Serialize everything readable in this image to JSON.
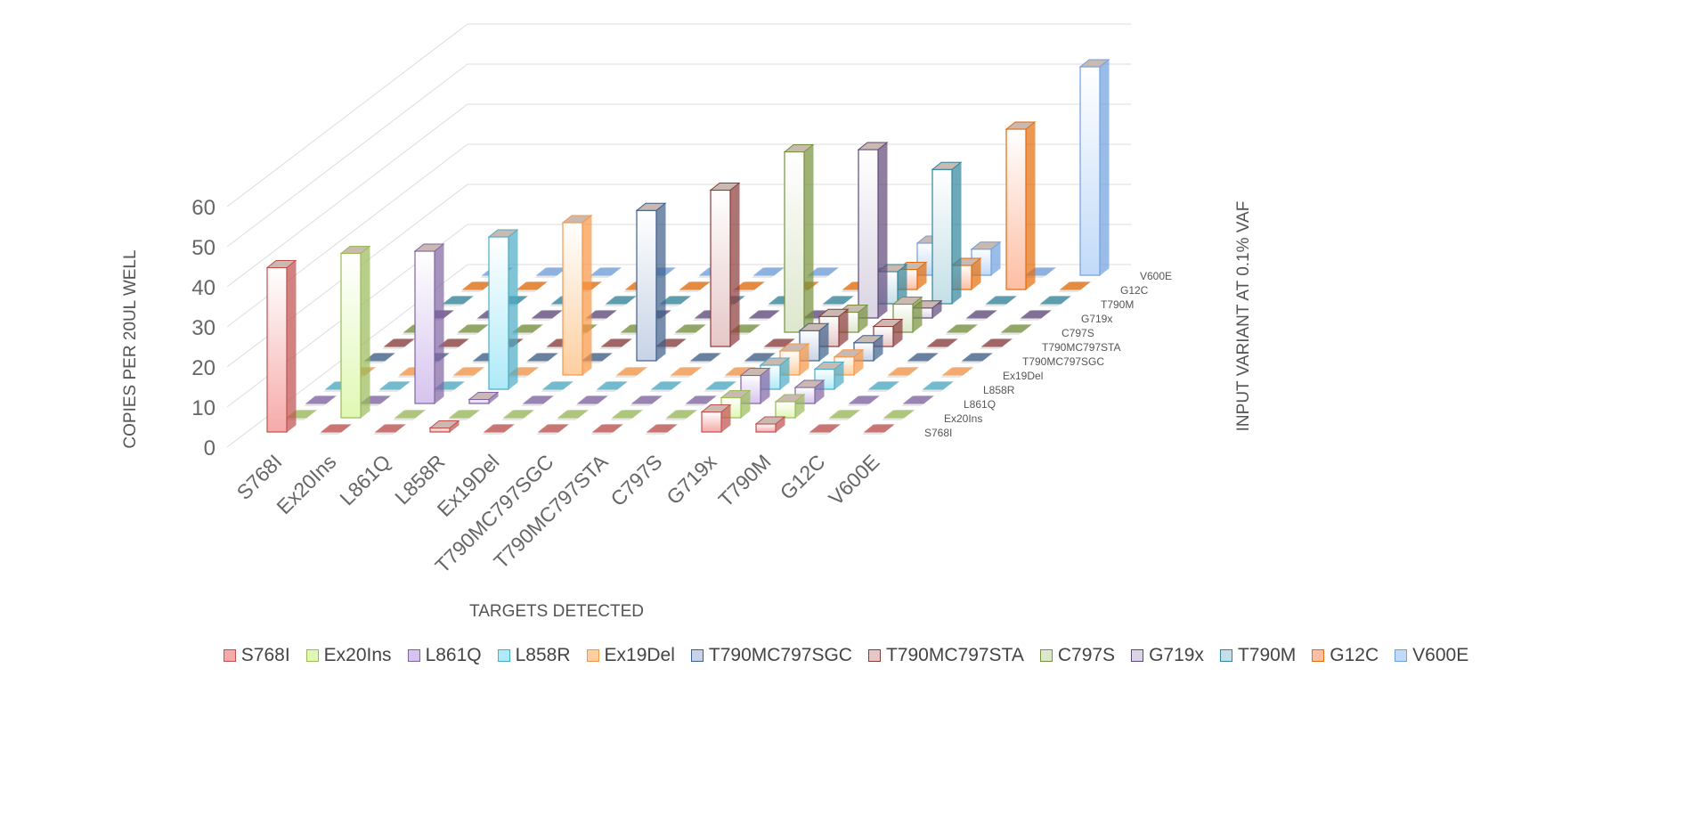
{
  "chart_data": {
    "type": "bar",
    "subtype": "3d-column",
    "title": "",
    "xlabel": "TARGETS DETECTED",
    "ylabel": "COPIES PER 20UL WELL",
    "zlabel": "INPUT VARIANT AT 0.1% VAF",
    "ylim": [
      0,
      60
    ],
    "yticks": [
      "0",
      "10",
      "20",
      "30",
      "40",
      "50",
      "60"
    ],
    "grid": true,
    "legend": "bottom",
    "categories": [
      "S768I",
      "Ex20Ins",
      "L861Q",
      "L858R",
      "Ex19Del",
      "T790MC797SGC",
      "T790MC797STA",
      "C797S",
      "G719x",
      "T790M",
      "G12C",
      "V600E"
    ],
    "series": [
      {
        "name": "S768I",
        "color": "#c0504d",
        "fill": "#f6aaaa",
        "values": [
          41,
          0,
          0,
          1,
          0,
          0,
          0,
          0,
          5,
          2,
          0,
          0
        ]
      },
      {
        "name": "Ex20Ins",
        "color": "#9bbb59",
        "fill": "#e0f8b4",
        "values": [
          0,
          41,
          0,
          0,
          0,
          0,
          0,
          0,
          5,
          4,
          0,
          0
        ]
      },
      {
        "name": "L861Q",
        "color": "#8064a2",
        "fill": "#d6c4ee",
        "values": [
          0,
          0,
          38,
          1,
          0,
          0,
          0,
          0,
          7,
          4,
          0,
          0
        ]
      },
      {
        "name": "L858R",
        "color": "#4bacc6",
        "fill": "#aeeaf8",
        "values": [
          0,
          0,
          0,
          38,
          0,
          0,
          0,
          0,
          6,
          5,
          0,
          0
        ]
      },
      {
        "name": "Ex19Del",
        "color": "#f79646",
        "fill": "#fdcfa0",
        "values": [
          0,
          0,
          0,
          0,
          38,
          0,
          0,
          0,
          6,
          4.5,
          0,
          0
        ]
      },
      {
        "name": "T790MC797SGC",
        "color": "#3e5f8a",
        "fill": "#c7d3e6",
        "values": [
          0,
          0,
          0,
          0,
          0,
          37.5,
          0,
          0,
          7.5,
          4.5,
          0,
          0
        ]
      },
      {
        "name": "T790MC797STA",
        "color": "#8b3a3a",
        "fill": "#e6c7c7",
        "values": [
          0,
          0,
          0,
          0,
          0,
          0,
          39,
          0,
          7.5,
          5,
          0,
          0
        ]
      },
      {
        "name": "C797S",
        "color": "#76923c",
        "fill": "#dde7cd",
        "values": [
          0,
          0,
          0,
          0,
          0,
          0,
          0,
          45,
          5,
          7,
          0,
          0
        ]
      },
      {
        "name": "G719x",
        "color": "#5f497a",
        "fill": "#dad4e3",
        "values": [
          0,
          0,
          0,
          0,
          0,
          0,
          0,
          0,
          42,
          2.5,
          0,
          0
        ]
      },
      {
        "name": "T790M",
        "color": "#31859c",
        "fill": "#c4dfe7",
        "values": [
          0,
          0,
          0,
          0,
          0,
          0,
          0,
          0,
          8,
          33.5,
          0,
          0
        ]
      },
      {
        "name": "G12C",
        "color": "#e46c0a",
        "fill": "#fdbea4",
        "values": [
          0,
          0,
          0,
          0,
          0,
          0,
          0,
          0,
          5,
          6,
          40,
          0
        ]
      },
      {
        "name": "V600E",
        "color": "#6fa0e0",
        "fill": "#c2daf8",
        "values": [
          0,
          0,
          0,
          0,
          0,
          0,
          0,
          0,
          8,
          6.5,
          0,
          52
        ]
      }
    ]
  }
}
